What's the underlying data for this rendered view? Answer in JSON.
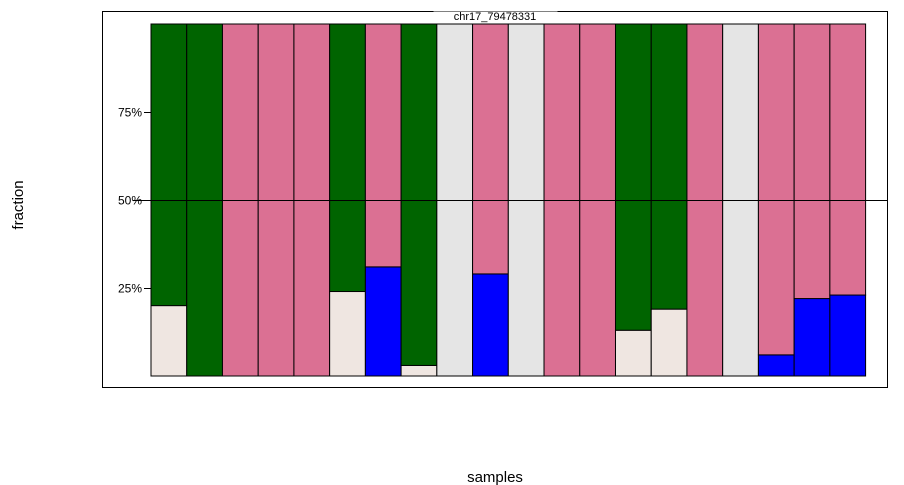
{
  "chart_data": {
    "type": "bar",
    "stacked": true,
    "title": "chr17_79478331",
    "xlabel": "samples",
    "ylabel": "fraction",
    "ylim": [
      0,
      1
    ],
    "y_ticks": [
      0.25,
      0.5,
      0.75
    ],
    "y_tick_labels": [
      "25%",
      "50%",
      "75%"
    ],
    "grid": false,
    "reference_line": 0.5,
    "sample_count": 20,
    "segment_colors": {
      "blue": "#0000ff",
      "white": "#efe6e1",
      "grey": "#e5e5e5",
      "pink": "#db7093",
      "green": "#006400"
    },
    "samples": [
      {
        "segments": [
          {
            "color": "white",
            "value": 0.2
          },
          {
            "color": "green",
            "value": 0.8
          }
        ]
      },
      {
        "segments": [
          {
            "color": "green",
            "value": 1.0
          }
        ]
      },
      {
        "segments": [
          {
            "color": "pink",
            "value": 1.0
          }
        ]
      },
      {
        "segments": [
          {
            "color": "pink",
            "value": 1.0
          }
        ]
      },
      {
        "segments": [
          {
            "color": "pink",
            "value": 1.0
          }
        ]
      },
      {
        "segments": [
          {
            "color": "white",
            "value": 0.24
          },
          {
            "color": "green",
            "value": 0.76
          }
        ]
      },
      {
        "segments": [
          {
            "color": "blue",
            "value": 0.31
          },
          {
            "color": "pink",
            "value": 0.69
          }
        ]
      },
      {
        "segments": [
          {
            "color": "white",
            "value": 0.03
          },
          {
            "color": "green",
            "value": 0.97
          }
        ]
      },
      {
        "segments": [
          {
            "color": "grey",
            "value": 1.0
          }
        ]
      },
      {
        "segments": [
          {
            "color": "blue",
            "value": 0.29
          },
          {
            "color": "pink",
            "value": 0.71
          }
        ]
      },
      {
        "segments": [
          {
            "color": "grey",
            "value": 1.0
          }
        ]
      },
      {
        "segments": [
          {
            "color": "pink",
            "value": 1.0
          }
        ]
      },
      {
        "segments": [
          {
            "color": "pink",
            "value": 1.0
          }
        ]
      },
      {
        "segments": [
          {
            "color": "white",
            "value": 0.13
          },
          {
            "color": "green",
            "value": 0.87
          }
        ]
      },
      {
        "segments": [
          {
            "color": "white",
            "value": 0.19
          },
          {
            "color": "green",
            "value": 0.81
          }
        ]
      },
      {
        "segments": [
          {
            "color": "pink",
            "value": 1.0
          }
        ]
      },
      {
        "segments": [
          {
            "color": "grey",
            "value": 1.0
          }
        ]
      },
      {
        "segments": [
          {
            "color": "blue",
            "value": 0.06
          },
          {
            "color": "pink",
            "value": 0.94
          }
        ]
      },
      {
        "segments": [
          {
            "color": "blue",
            "value": 0.22
          },
          {
            "color": "pink",
            "value": 0.78
          }
        ]
      },
      {
        "segments": [
          {
            "color": "blue",
            "value": 0.23
          },
          {
            "color": "pink",
            "value": 0.77
          }
        ]
      }
    ]
  }
}
